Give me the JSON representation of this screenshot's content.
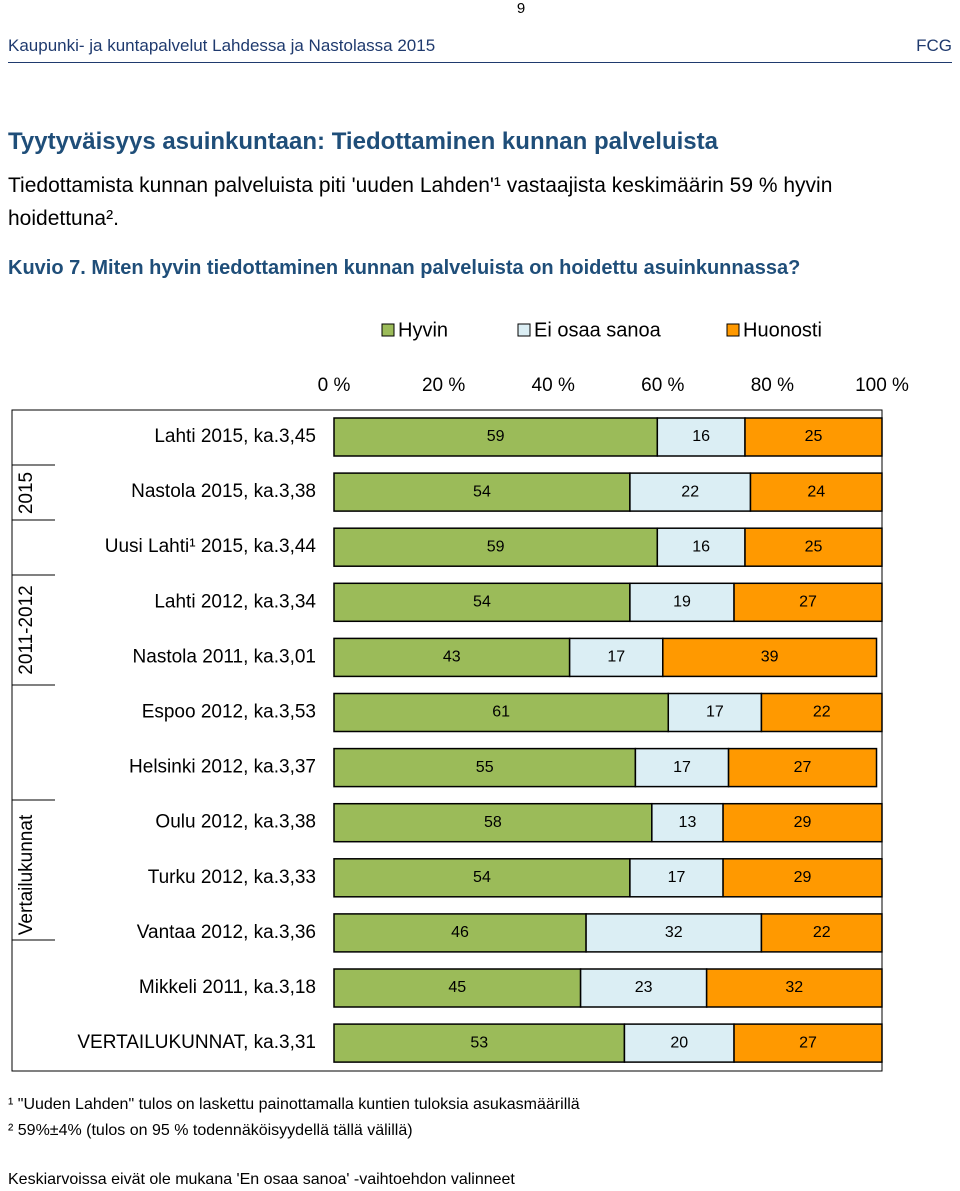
{
  "page_number": "9",
  "header": {
    "title": "Kaupunki- ja kuntapalvelut Lahdessa ja Nastolassa 2015",
    "company": "FCG"
  },
  "heading": "Tyytyväisyys asuinkuntaan: Tiedottaminen kunnan palveluista",
  "paragraph": "Tiedottamista kunnan palveluista piti 'uuden Lahden'¹ vastaajista keskimäärin 59 % hyvin hoidettuna².",
  "figure_caption": "Kuvio 7. Miten hyvin tiedottaminen kunnan palveluista on hoidettu asuinkunnassa?",
  "chart_data": {
    "type": "stacked-bar-horizontal",
    "categories": [
      "Lahti 2015, ka.3,45",
      "Nastola 2015, ka.3,38",
      "Uusi Lahti¹ 2015, ka.3,44",
      "Lahti 2012, ka.3,34",
      "Nastola 2011, ka.3,01",
      "Espoo 2012, ka.3,53",
      "Helsinki 2012, ka.3,37",
      "Oulu 2012, ka.3,38",
      "Turku 2012, ka.3,33",
      "Vantaa 2012, ka.3,36",
      "Mikkeli 2011, ka.3,18",
      "VERTAILUKUNNAT, ka.3,31"
    ],
    "groups": [
      "2015",
      "2011-2012",
      "Vertailukunnat"
    ],
    "series": [
      {
        "name": "Hyvin",
        "color": "#9bbb59",
        "values": [
          59,
          54,
          59,
          54,
          43,
          61,
          55,
          58,
          54,
          46,
          45,
          53
        ]
      },
      {
        "name": "Ei osaa sanoa",
        "color": "#dbeef4",
        "values": [
          16,
          22,
          16,
          19,
          17,
          17,
          17,
          13,
          17,
          32,
          23,
          20
        ]
      },
      {
        "name": "Huonosti",
        "color": "#ff9900",
        "values": [
          25,
          24,
          25,
          27,
          39,
          22,
          27,
          29,
          29,
          22,
          32,
          27
        ]
      }
    ],
    "xlim": [
      0,
      100
    ],
    "xticks": [
      {
        "value": 0,
        "label": "0 %"
      },
      {
        "value": 20,
        "label": "20 %"
      },
      {
        "value": 40,
        "label": "40 %"
      },
      {
        "value": 60,
        "label": "60 %"
      },
      {
        "value": 80,
        "label": "80 %"
      },
      {
        "value": 100,
        "label": "100 %"
      }
    ],
    "legend": "top"
  },
  "footnotes": [
    "¹ \"Uuden Lahden\" tulos on laskettu painottamalla kuntien tuloksia asukasmäärillä",
    "² 59%±4% (tulos on 95 % todennäköisyydellä tällä välillä)",
    "Keskiarvoissa eivät ole mukana 'En osaa sanoa' -vaihtoehdon valinneet"
  ]
}
